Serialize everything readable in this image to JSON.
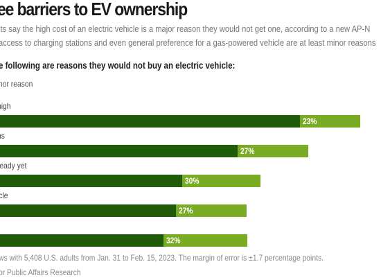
{
  "header": {
    "title": "ee barriers to EV ownership",
    "subtitle_line1": "lts say the high cost of an electric vehicle is a major reason they would not get one, according to a new AP-N",
    "subtitle_line2": "access to charging stations and even general preference for a gas-powered vehicle are at least minor reasons",
    "question": "e following are reasons they would not buy an electric vehicle:",
    "legend_minor": "nor reason"
  },
  "chart_data": {
    "type": "bar",
    "orientation": "horizontal",
    "stacked": true,
    "categories": [
      "high",
      "ns",
      "ready yet",
      "icle",
      ""
    ],
    "series": [
      {
        "name": "",
        "color": "#1f5b09",
        "values": [
          null,
          null,
          null,
          null,
          null
        ]
      },
      {
        "name": "Minor reason",
        "color": "#7aab24",
        "values": [
          23,
          27,
          30,
          27,
          32
        ]
      }
    ],
    "value_labels": [
      "23%",
      "27%",
      "30%",
      "27%",
      "32%"
    ],
    "grid": false,
    "legend_position": "top-left"
  },
  "footer": {
    "note": "ws with 5,408 U.S. adults from Jan. 31 to Feb. 15, 2023. The margin of error is ±1.7 percentage points.",
    "source": "or Public Affairs Research"
  }
}
